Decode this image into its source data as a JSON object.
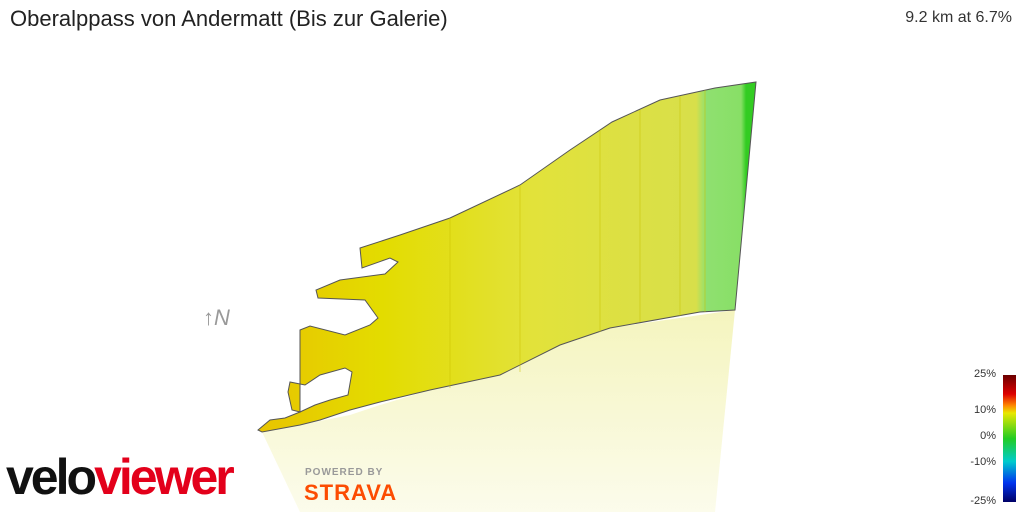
{
  "header": {
    "title": "Oberalppass von Andermatt (Bis zur Galerie)",
    "stats": "9.2 km at 6.7%"
  },
  "compass": "↑N",
  "branding": {
    "brand_first": "velo",
    "brand_second": "viewer",
    "powered_by": "POWERED BY",
    "partner": "STRAVA"
  },
  "gradient_scale": {
    "labels": [
      "25%",
      "10%",
      "0%",
      "-10%",
      "-25%"
    ]
  }
}
